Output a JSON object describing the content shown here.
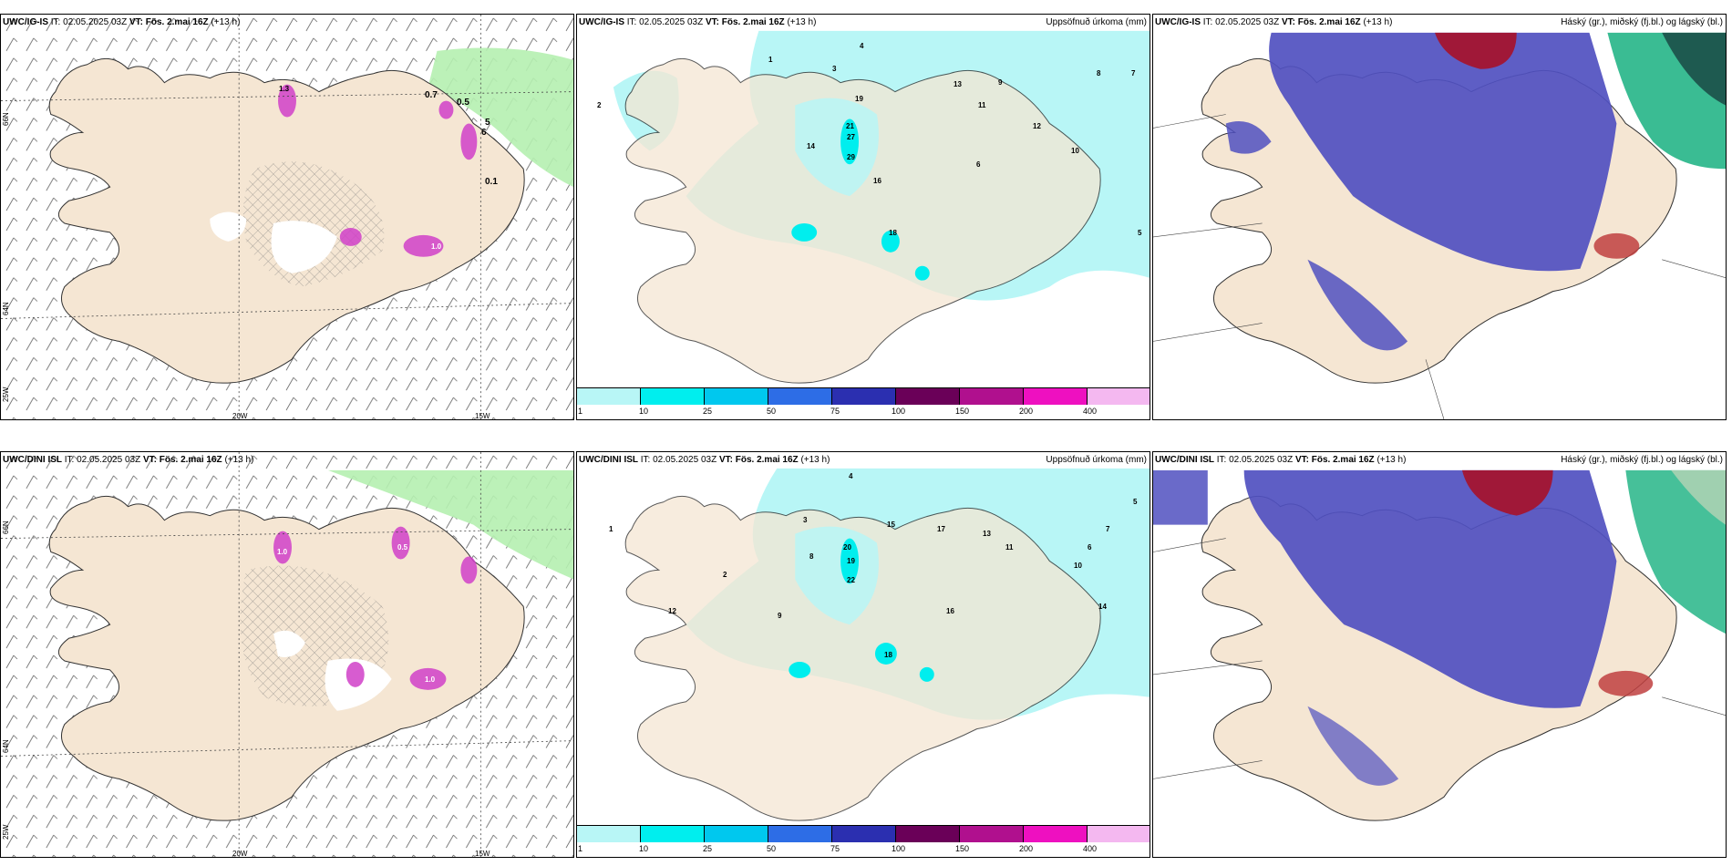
{
  "panels": [
    {
      "model": "UWC/IG-IS",
      "it_label": "IT:",
      "it_value": "02.05.2025 03Z",
      "vt_label": "VT:",
      "vt_value": "Fös. 2.mai 16Z",
      "lead": "(+13 h)",
      "right_title": ""
    },
    {
      "model": "UWC/IG-IS",
      "it_label": "IT:",
      "it_value": "02.05.2025 03Z",
      "vt_label": "VT:",
      "vt_value": "Fös. 2.mai 16Z",
      "lead": "(+13 h)",
      "right_title": "Uppsöfnuð úrkoma (mm)"
    },
    {
      "model": "UWC/IG-IS",
      "it_label": "IT:",
      "it_value": "02.05.2025 03Z",
      "vt_label": "VT:",
      "vt_value": "Fös. 2.mai 16Z",
      "lead": "(+13 h)",
      "right_title": "Háský (gr.), miðský (fj.bl.) og lágský (bl.)"
    },
    {
      "model": "UWC/DINI ISL",
      "it_label": "IT:",
      "it_value": "02.05.2025 03Z",
      "vt_label": "VT:",
      "vt_value": "Fös. 2.mai 16Z",
      "lead": "(+13 h)",
      "right_title": ""
    },
    {
      "model": "UWC/DINI ISL",
      "it_label": "IT:",
      "it_value": "02.05.2025 03Z",
      "vt_label": "VT:",
      "vt_value": "Fös. 2.mai 16Z",
      "lead": "(+13 h)",
      "right_title": "Uppsöfnuð úrkoma (mm)"
    },
    {
      "model": "UWC/DINI ISL",
      "it_label": "IT:",
      "it_value": "02.05.2025 03Z",
      "vt_label": "VT:",
      "vt_value": "Fös. 2.mai 16Z",
      "lead": "(+13 h)",
      "right_title": "Háský (gr.), miðský (fj.bl.) og lágský (bl.)"
    }
  ],
  "axis_labels": {
    "lat66": "66N",
    "lat64": "64N",
    "lon25": "25W",
    "lon20": "20W",
    "lon15": "15W"
  },
  "colorbar": {
    "ticks": [
      "1",
      "10",
      "25",
      "50",
      "75",
      "100",
      "150",
      "200",
      "400"
    ],
    "colors": [
      "#b8f6f6",
      "#00eeee",
      "#00c8ee",
      "#2d6de6",
      "#2b2fb0",
      "#6a0058",
      "#b0108e",
      "#ee10c0",
      "#f4b8f0"
    ]
  },
  "wind_labels": {
    "top": [
      "1.3",
      "0.7",
      "0.5",
      "6",
      "5",
      "0.1",
      "1.0"
    ],
    "bottom": [
      "1.0",
      "1.0",
      "0.5"
    ]
  },
  "precip_labels": {
    "top": [
      "1",
      "2",
      "3",
      "4",
      "5",
      "6",
      "7",
      "8",
      "9",
      "10",
      "11",
      "12",
      "13",
      "14",
      "16",
      "18",
      "19",
      "21",
      "27",
      "29"
    ],
    "bottom": [
      "1",
      "2",
      "3",
      "4",
      "5",
      "6",
      "7",
      "8",
      "9",
      "10",
      "11",
      "12",
      "13",
      "14",
      "15",
      "16",
      "17",
      "18",
      "19",
      "20",
      "22"
    ]
  },
  "theme": {
    "land": "#f5e6d3",
    "rain_light": "#b8f6f6",
    "rain_mid": "#00eeee",
    "snow_green": "#b5f0b0",
    "cloud_blue": "#5050c0",
    "cloud_dark": "#3838a8",
    "cloud_red": "#a01838",
    "cloud_green": "#18b080",
    "pink": "#d040c8"
  }
}
